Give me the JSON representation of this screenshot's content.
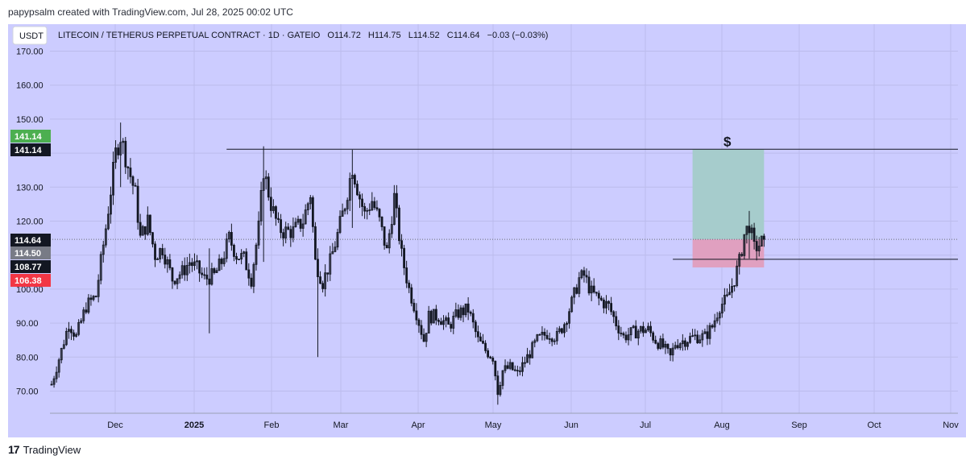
{
  "header": {
    "text": "papypsalm created with TradingView.com, Jul 28, 2025 00:02 UTC"
  },
  "footer": {
    "logo": "17",
    "brand": "TradingView"
  },
  "colors": {
    "background": "#ccccff",
    "candle": "#131722",
    "target_zone": "#a6cccc",
    "stop_zone": "#e0a0c0",
    "badge_green": "#4caf50",
    "badge_black": "#131722",
    "badge_gray": "#787b86",
    "badge_red": "#f23645",
    "grid": "#bcbcec"
  },
  "chart_data": {
    "type": "candlestick",
    "currency_button": "USDT",
    "title": "LITECOIN / TETHERUS PERPETUAL CONTRACT · 1D · GATEIO",
    "ohlc_text": {
      "open_label": "O",
      "open": "114.72",
      "high_label": "H",
      "high": "114.75",
      "low_label": "L",
      "low": "114.52",
      "close_label": "C",
      "close": "114.64",
      "change": "−0.03 (−0.03%)"
    },
    "y_axis": {
      "range": [
        65,
        172
      ],
      "ticks": [
        "170.00",
        "160.00",
        "150.00",
        "140.00",
        "130.00",
        "120.00",
        "110.00",
        "100.00",
        "90.00",
        "80.00",
        "70.00"
      ]
    },
    "x_axis": {
      "ticks": [
        "Dec",
        "2025",
        "Feb",
        "Mar",
        "Apr",
        "May",
        "Jun",
        "Jul",
        "Aug",
        "Sep",
        "Oct",
        "Nov"
      ]
    },
    "price_badges": [
      {
        "value": "141.14",
        "color": "green"
      },
      {
        "value": "141.14",
        "color": "black"
      },
      {
        "value": "114.64",
        "color": "black"
      },
      {
        "value": "114.50",
        "color": "gray"
      },
      {
        "value": "108.77",
        "color": "black"
      },
      {
        "value": "106.38",
        "color": "red"
      }
    ],
    "horizontal_lines": [
      {
        "price": 141.14,
        "from": "2025-01-18",
        "to": "end"
      },
      {
        "price": 108.77,
        "from": "2025-07-18",
        "to": "end"
      }
    ],
    "current_price_line": 114.64,
    "position_tool": {
      "entry": 114.64,
      "target": 141.14,
      "stop": 106.38,
      "from": "2025-07-26",
      "to": "2025-08-24",
      "label": "$"
    },
    "series_path": [
      [
        "2024-11-08",
        72
      ],
      [
        "2024-11-12",
        82
      ],
      [
        "2024-11-15",
        90
      ],
      [
        "2024-11-18",
        86
      ],
      [
        "2024-11-22",
        95
      ],
      [
        "2024-11-26",
        98
      ],
      [
        "2024-11-30",
        118
      ],
      [
        "2024-12-04",
        140
      ],
      [
        "2024-12-06",
        145
      ],
      [
        "2024-12-09",
        136
      ],
      [
        "2024-12-12",
        128
      ],
      [
        "2024-12-14",
        115
      ],
      [
        "2024-12-17",
        120
      ],
      [
        "2024-12-20",
        110
      ],
      [
        "2024-12-23",
        112
      ],
      [
        "2024-12-27",
        103
      ],
      [
        "2024-12-31",
        105
      ],
      [
        "2025-01-03",
        108
      ],
      [
        "2025-01-06",
        106
      ],
      [
        "2025-01-09",
        103
      ],
      [
        "2025-01-13",
        104
      ],
      [
        "2025-01-16",
        108
      ],
      [
        "2025-01-19",
        115
      ],
      [
        "2025-01-22",
        110
      ],
      [
        "2025-01-25",
        109
      ],
      [
        "2025-01-28",
        103
      ],
      [
        "2025-01-31",
        118
      ],
      [
        "2025-02-02",
        135
      ],
      [
        "2025-02-05",
        125
      ],
      [
        "2025-02-08",
        118
      ],
      [
        "2025-02-10",
        117
      ],
      [
        "2025-02-14",
        117
      ],
      [
        "2025-02-18",
        120
      ],
      [
        "2025-02-21",
        128
      ],
      [
        "2025-02-23",
        108
      ],
      [
        "2025-02-26",
        102
      ],
      [
        "2025-03-01",
        108
      ],
      [
        "2025-03-04",
        116
      ],
      [
        "2025-03-07",
        125
      ],
      [
        "2025-03-10",
        136
      ],
      [
        "2025-03-13",
        127
      ],
      [
        "2025-03-15",
        122
      ],
      [
        "2025-03-18",
        126
      ],
      [
        "2025-03-21",
        120
      ],
      [
        "2025-03-24",
        111
      ],
      [
        "2025-03-27",
        127
      ],
      [
        "2025-03-30",
        110
      ],
      [
        "2025-04-02",
        100
      ],
      [
        "2025-04-05",
        93
      ],
      [
        "2025-04-08",
        85
      ],
      [
        "2025-04-10",
        92
      ],
      [
        "2025-04-14",
        92
      ],
      [
        "2025-04-18",
        89
      ],
      [
        "2025-04-22",
        93
      ],
      [
        "2025-04-26",
        94
      ],
      [
        "2025-04-30",
        85
      ],
      [
        "2025-05-03",
        82
      ],
      [
        "2025-05-06",
        80
      ],
      [
        "2025-05-08",
        70
      ],
      [
        "2025-05-10",
        76
      ],
      [
        "2025-05-13",
        77
      ],
      [
        "2025-05-16",
        75
      ],
      [
        "2025-05-20",
        80
      ],
      [
        "2025-05-24",
        85
      ],
      [
        "2025-05-28",
        87
      ],
      [
        "2025-06-01",
        86
      ],
      [
        "2025-06-04",
        90
      ],
      [
        "2025-06-07",
        96
      ],
      [
        "2025-06-10",
        103
      ],
      [
        "2025-06-12",
        104
      ],
      [
        "2025-06-15",
        99
      ],
      [
        "2025-06-18",
        97
      ],
      [
        "2025-06-22",
        95
      ],
      [
        "2025-06-25",
        90
      ],
      [
        "2025-06-28",
        86
      ],
      [
        "2025-07-01",
        87
      ],
      [
        "2025-07-05",
        88
      ],
      [
        "2025-07-08",
        88
      ],
      [
        "2025-07-11",
        85
      ],
      [
        "2025-07-14",
        83
      ],
      [
        "2025-07-17",
        80
      ],
      [
        "2025-07-19",
        84
      ],
      [
        "2025-07-23",
        85
      ],
      [
        "2025-07-27",
        86
      ],
      [
        "2025-07-31",
        86
      ],
      [
        "2025-08-03",
        89
      ],
      [
        "2025-08-06",
        95
      ],
      [
        "2025-08-09",
        97
      ],
      [
        "2025-08-12",
        103
      ],
      [
        "2025-08-14",
        108
      ],
      [
        "2025-08-16",
        116
      ],
      [
        "2025-08-18",
        119
      ],
      [
        "2025-08-20",
        112
      ],
      [
        "2025-08-22",
        113
      ],
      [
        "2025-08-24",
        114.64
      ]
    ],
    "wick_extremes": [
      {
        "date": "2024-12-06",
        "high": 149,
        "low": 130
      },
      {
        "date": "2025-01-11",
        "high": 112,
        "low": 87
      },
      {
        "date": "2025-02-02",
        "high": 142,
        "low": 108
      },
      {
        "date": "2025-02-24",
        "high": 112,
        "low": 80
      },
      {
        "date": "2025-03-10",
        "high": 141,
        "low": 118
      },
      {
        "date": "2025-05-08",
        "high": 76,
        "low": 66
      },
      {
        "date": "2025-08-18",
        "high": 123,
        "low": 109
      }
    ]
  }
}
